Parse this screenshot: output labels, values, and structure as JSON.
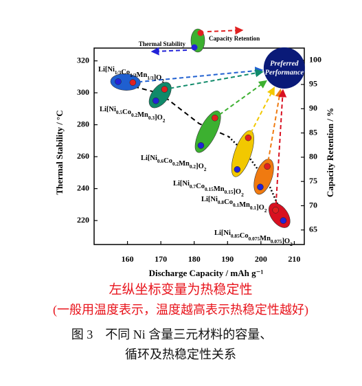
{
  "chart_data": {
    "type": "scatter",
    "xlabel": "Discharge Capacity / mAh g⁻¹",
    "ylabel": "Thermal Stability / °C",
    "y2label": "Capacity Retention / %",
    "xlim": [
      150,
      213
    ],
    "xticks": [
      160,
      170,
      180,
      190,
      200,
      210
    ],
    "ylim": [
      205,
      328
    ],
    "yticks": [
      220,
      240,
      260,
      280,
      300,
      320
    ],
    "y2lim": [
      62,
      102.5
    ],
    "y2ticks": [
      65,
      70,
      75,
      80,
      85,
      90,
      95,
      100
    ],
    "materials": {
      "labels": [
        "Li[Ni1/3Co1/3Mn1/3]O2",
        "Li[Ni0.5Co0.2Mn0.3]O2",
        "Li[Ni0.6Co0.2Mn0.2]O2",
        "Li[Ni0.7Co0.15Mn0.15]O2",
        "Li[Ni0.8Co0.1Mn0.1]O2",
        "Li[Ni0.85Co0.075Mn0.075]O2"
      ],
      "colors": [
        "#1f5fd0",
        "#108a6a",
        "#3cb030",
        "#f2c800",
        "#f07a10",
        "#d81020"
      ]
    },
    "series": [
      {
        "name": "Thermal Stability",
        "color": "#2222d8",
        "axis": "y",
        "x": [
          157.2,
          168.5,
          182,
          192.9,
          199.8,
          206.7
        ],
        "values": [
          307,
          295,
          267,
          252,
          241,
          220
        ]
      },
      {
        "name": "Capacity Retention",
        "color": "#e02020",
        "axis": "y2",
        "x": [
          161.6,
          171.1,
          186.2,
          196.2,
          201.9,
          204.4
        ],
        "values": [
          95.4,
          94,
          88.1,
          84,
          78.1,
          69.1
        ]
      }
    ],
    "target": {
      "label": "Preferred Performance",
      "color": "#0a1a78",
      "x": 207,
      "value": 98.4
    },
    "annotations": [
      "左纵坐标变量为热稳定性",
      "(一般用温度表示，温度越高表示热稳定性越好)"
    ],
    "caption": [
      "图 3　不同 Ni 含量三元材料的容量、",
      "循环及热稳定性关系"
    ]
  }
}
